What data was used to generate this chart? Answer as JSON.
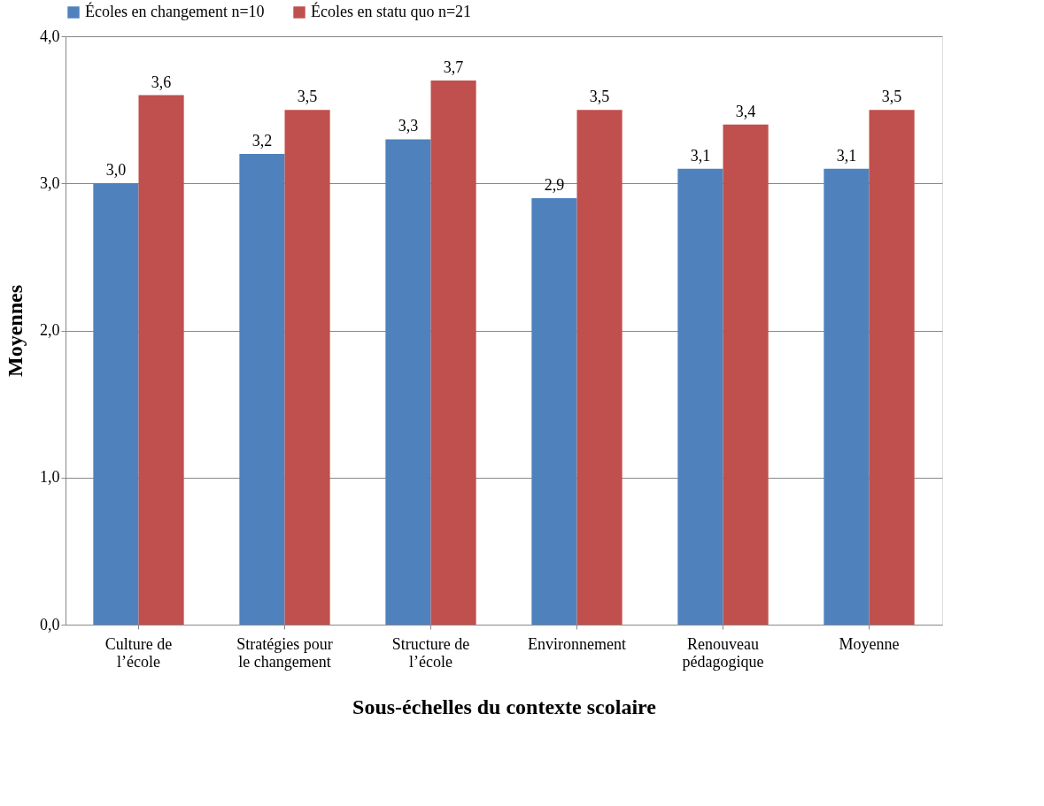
{
  "chart_data": {
    "type": "bar",
    "xlabel": "Sous-échelles du contexte scolaire",
    "ylabel": "Moyennes",
    "categories": [
      "Culture de l’école",
      "Stratégies pour le changement",
      "Structure de l’école",
      "Environnement",
      "Renouveau pédagogique",
      "Moyenne"
    ],
    "series": [
      {
        "name": "Écoles en changement n=10",
        "color": "#4f81bd",
        "values": [
          3.0,
          3.2,
          3.3,
          2.9,
          3.1,
          3.1
        ],
        "value_labels": [
          "3,0",
          "3,2",
          "3,3",
          "2,9",
          "3,1",
          "3,1"
        ]
      },
      {
        "name": "Écoles en statu quo n=21",
        "color": "#c0504d",
        "values": [
          3.6,
          3.5,
          3.7,
          3.5,
          3.4,
          3.5
        ],
        "value_labels": [
          "3,6",
          "3,5",
          "3,7",
          "3,5",
          "3,4",
          "3,5"
        ]
      }
    ],
    "ylim": [
      0,
      4
    ],
    "yticks": [
      {
        "value": 0,
        "label": "0,0"
      },
      {
        "value": 1,
        "label": "1,0"
      },
      {
        "value": 2,
        "label": "2,0"
      },
      {
        "value": 3,
        "label": "3,0"
      },
      {
        "value": 4,
        "label": "4,0"
      }
    ],
    "grid": "y",
    "legend": "top"
  }
}
